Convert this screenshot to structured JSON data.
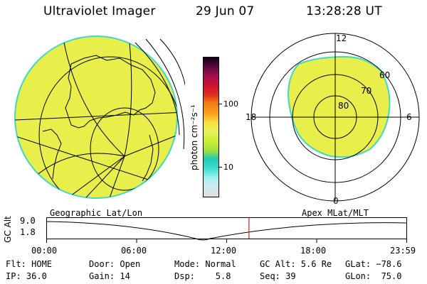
{
  "header": {
    "instrument": "Ultraviolet Imager",
    "date": "29 Jun 07",
    "time": "13:28:28 UT"
  },
  "colorbar": {
    "unit": "photon cm⁻²s⁻¹",
    "tick_100": "100",
    "tick_10": "10",
    "colors": [
      "#e0e0e0",
      "#d0e8f0",
      "#a8f0f0",
      "#40e0d0",
      "#20c8b8",
      "#a0e040",
      "#c8f030",
      "#e8f060",
      "#f8e040",
      "#f8a020",
      "#f08010",
      "#e03020",
      "#d01030",
      "#a01050",
      "#600840",
      "#100018"
    ]
  },
  "polar": {
    "mlt_12": "12",
    "mlt_18": "18",
    "mlt_6": "6",
    "mlt_0": "0",
    "lat_60": "60",
    "lat_70": "70",
    "lat_80": "80"
  },
  "timeline": {
    "axis_label": "GC Alt",
    "y_top": "9.0",
    "y_bottom": "1.8",
    "left_title": "Geographic Lat/Lon",
    "right_title": "Apex MLat/MLT",
    "ticks": [
      "00:00",
      "06:00",
      "12:00",
      "18:00",
      "23:59"
    ],
    "marker_time_fraction": 0.562
  },
  "status": {
    "flt": "Flt: HOME",
    "ip": "IP: 36.0",
    "door": "Door: Open",
    "gain": "Gain: 14",
    "mode": "Mode: Normal",
    "dsp": "Dsp:    5.8",
    "gcalt": "GC Alt: 5.6 Re",
    "seq": "Seq: 39",
    "glat": "GLat: −78.6",
    "glon": "GLon:  75.0"
  },
  "colors": {
    "aurora_fill": "#e8ee4a",
    "aurora_edge": "#40d8c8",
    "marker": "#cc2222"
  }
}
